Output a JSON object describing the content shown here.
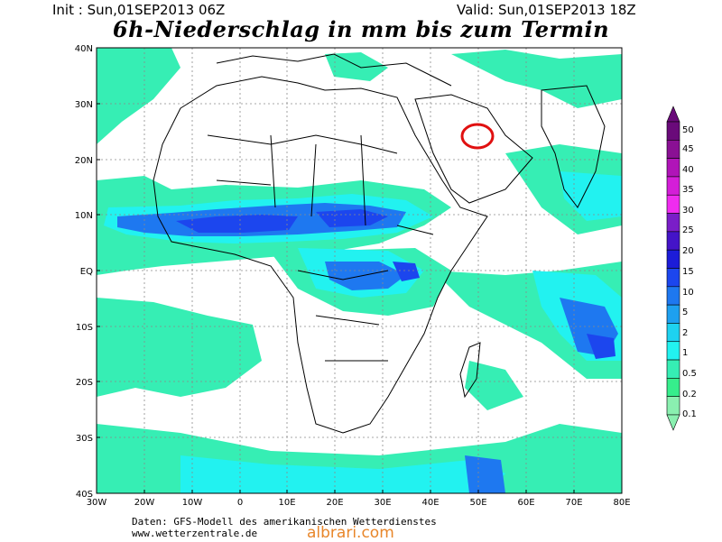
{
  "header": {
    "init_label": "Init : Sun,01SEP2013 06Z",
    "valid_label": "Valid: Sun,01SEP2013 18Z",
    "title": "6h-Niederschlag in mm bis zum Termin"
  },
  "map": {
    "lat_ticks": [
      "40N",
      "30N",
      "20N",
      "10N",
      "EQ",
      "10S",
      "20S",
      "30S",
      "40S"
    ],
    "lon_ticks": [
      "30W",
      "20W",
      "10W",
      "0",
      "10E",
      "20E",
      "30E",
      "40E",
      "50E",
      "60E",
      "70E",
      "80E"
    ],
    "highlight_marker": "red circle over Arabian Peninsula near 27N 50E"
  },
  "legend": {
    "levels": [
      "50",
      "45",
      "40",
      "35",
      "30",
      "25",
      "20",
      "15",
      "10",
      "5",
      "2",
      "1",
      "0.5",
      "0.2",
      "0.1"
    ],
    "colors": [
      "#6a0a7a",
      "#8a1094",
      "#b014b8",
      "#d41ed8",
      "#f02cf0",
      "#7a1ec8",
      "#4414c8",
      "#1c1cd8",
      "#1c46ee",
      "#1e78f0",
      "#1ea0f0",
      "#1ed2f0",
      "#22f2f0",
      "#36eeb4",
      "#36ee8c",
      "#8af0b0"
    ]
  },
  "footer": {
    "credit_line1": "Daten: GFS-Modell des amerikanischen Wetterdienstes",
    "credit_line2": "www.wetterzentrale.de",
    "watermark": "albrari.com"
  }
}
